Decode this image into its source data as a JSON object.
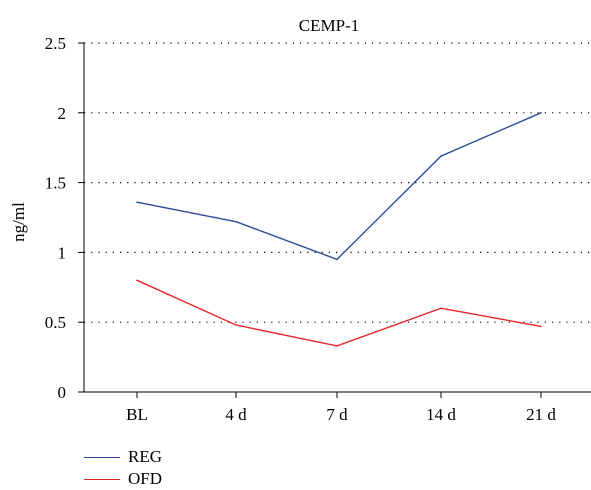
{
  "chart_data": {
    "type": "line",
    "title": "CEMP-1",
    "xlabel": "",
    "ylabel": "ng/ml",
    "categories": [
      "BL",
      "4 d",
      "7 d",
      "14 d",
      "21 d"
    ],
    "ylim": [
      0,
      2.5
    ],
    "yticks": [
      "0",
      "0.5",
      "1",
      "1.5",
      "2",
      "2.5"
    ],
    "grid": "horizontal dotted",
    "legend_position": "bottom-left",
    "series": [
      {
        "name": "REG",
        "color": "#2f4a9a",
        "values": [
          1.36,
          1.22,
          0.95,
          1.69,
          2.0
        ]
      },
      {
        "name": "OFD",
        "color": "#e8272a",
        "values": [
          0.8,
          0.48,
          0.33,
          0.6,
          0.47
        ]
      }
    ]
  }
}
